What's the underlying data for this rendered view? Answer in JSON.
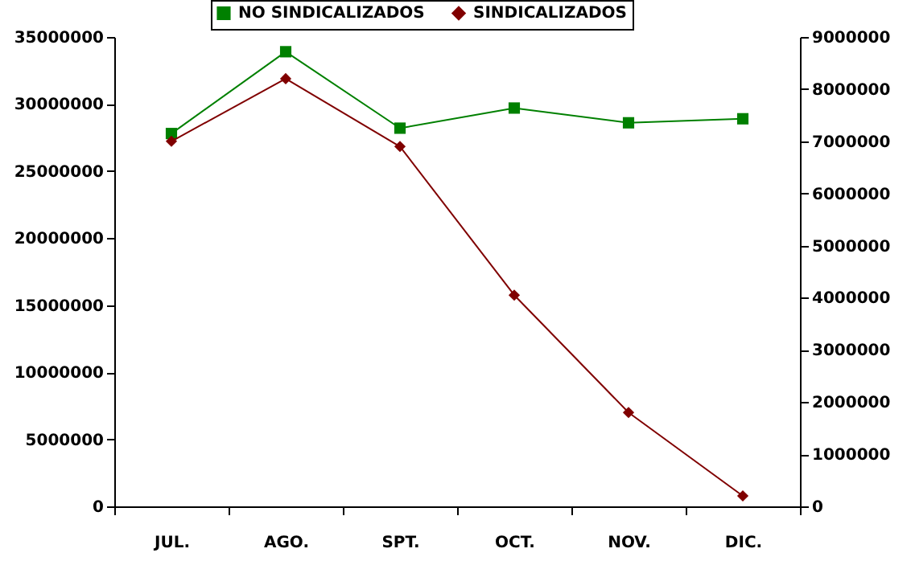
{
  "chart_data": {
    "type": "line",
    "categories": [
      "JUL.",
      "AGO.",
      "SPT.",
      "OCT.",
      "NOV.",
      "DIC."
    ],
    "series": [
      {
        "name": "NO SINDICALIZADOS",
        "color": "#008000",
        "marker": "square",
        "values": [
          27800000,
          33900000,
          28200000,
          29700000,
          28600000,
          28900000
        ]
      },
      {
        "name": "SINDICALIZADOS",
        "color": "#800000",
        "marker": "diamond",
        "axis": "y2",
        "values": [
          7000000,
          8200000,
          6900000,
          4050000,
          1800000,
          200000
        ]
      }
    ],
    "ylim": [
      0,
      35000000
    ],
    "yticks": [
      0,
      5000000,
      10000000,
      15000000,
      20000000,
      25000000,
      30000000,
      35000000
    ],
    "y2lim": [
      0,
      9000000
    ],
    "y2ticks": [
      0,
      1000000,
      2000000,
      3000000,
      4000000,
      5000000,
      6000000,
      7000000,
      8000000,
      9000000
    ],
    "grid": false,
    "legend": "top",
    "line_style": "solid"
  }
}
